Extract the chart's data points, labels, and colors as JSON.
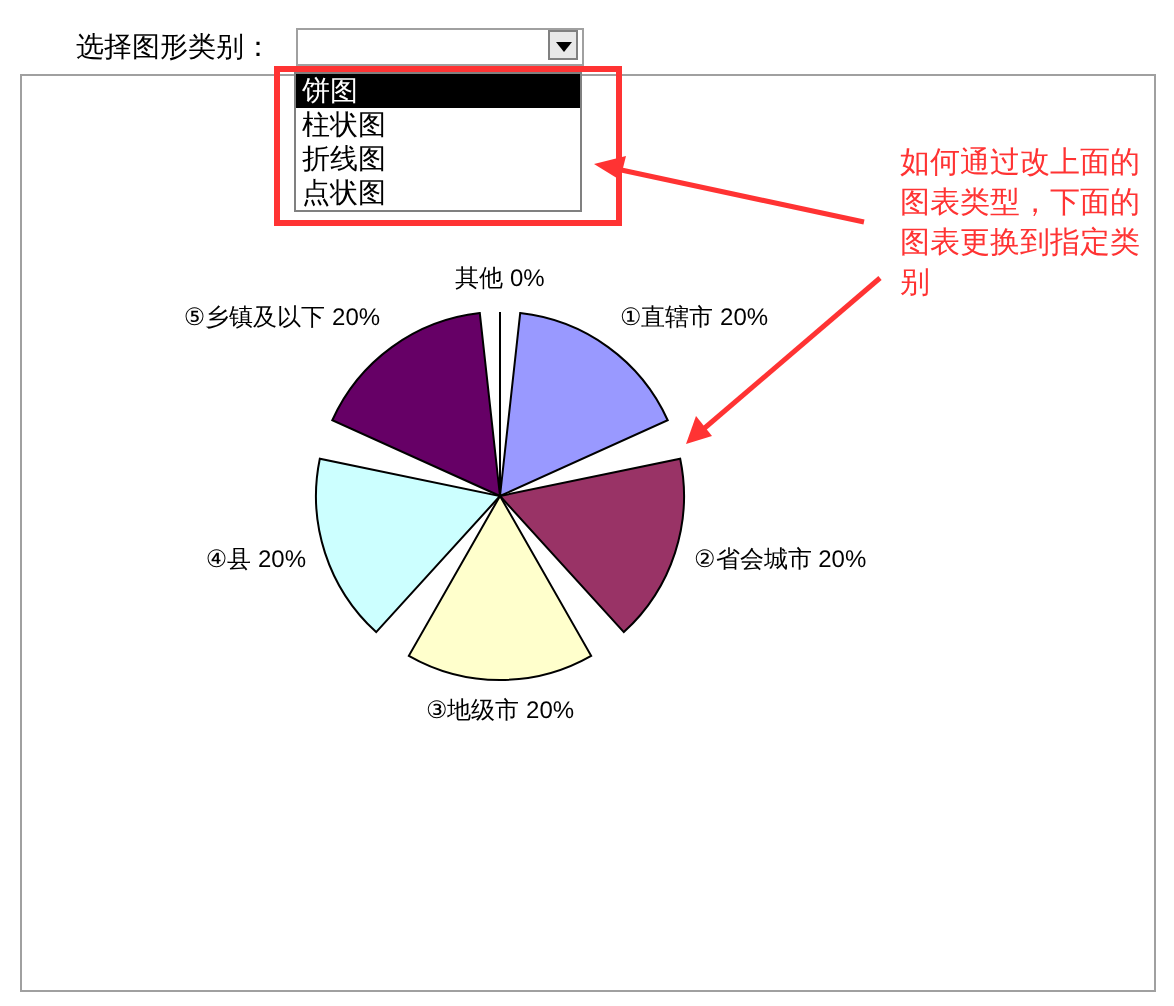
{
  "chart_data": {
    "type": "pie",
    "categories": [
      "①直辖市",
      "②省会城市",
      "③地级市",
      "④县",
      "⑤乡镇及以下",
      "其他"
    ],
    "values": [
      20,
      20,
      20,
      20,
      20,
      0
    ],
    "value_labels": [
      "20%",
      "20%",
      "20%",
      "20%",
      "20%",
      "0%"
    ],
    "colors": [
      "#9999ff",
      "#993366",
      "#ffffcc",
      "#ccffff",
      "#660066",
      "#ffffff"
    ],
    "annotations": [
      "选择图形类别：",
      "饼图",
      "柱状图",
      "折线图",
      "点状图",
      "如何通过改上面的图表类型，下面的图表更换到指定类别"
    ]
  }
}
